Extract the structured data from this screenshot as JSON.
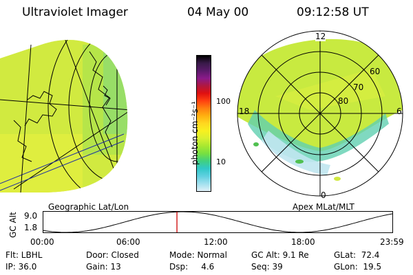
{
  "header": {
    "instrument": "Ultraviolet Imager",
    "date": "04 May 00",
    "time": "09:12:58 UT"
  },
  "left_panel": {
    "caption": "Geographic Lat/Lon"
  },
  "colorbar": {
    "unit_label": "photon cm⁻²s⁻¹",
    "ticks": [
      "100",
      "10"
    ],
    "colors": [
      "#000000",
      "#3a1a4a",
      "#5a1a6a",
      "#8a1a8a",
      "#b01840",
      "#e01010",
      "#ff4010",
      "#ff8010",
      "#ffb010",
      "#ffd820",
      "#f8f020",
      "#d8f030",
      "#a8e830",
      "#78e040",
      "#40d080",
      "#30c8c8",
      "#60d0e0",
      "#a0e0ee",
      "#e0f0f8"
    ]
  },
  "right_panel": {
    "caption": "Apex MLat/MLT",
    "mlt_labels": {
      "top": "12",
      "left": "18",
      "right": "6",
      "bottom": "0"
    },
    "mlat_labels": [
      "60",
      "70",
      "80"
    ]
  },
  "gc_alt_plot": {
    "axis_label": "GC Alt",
    "y_ticks": [
      "9.0",
      "1.8"
    ],
    "x_ticks": [
      "00:00",
      "06:00",
      "12:00",
      "18:00",
      "23:59"
    ],
    "current_time_fraction": 0.382
  },
  "info": {
    "row1": {
      "flt": "Flt: LBHL",
      "door": "Door: Closed",
      "mode": "Mode: Normal",
      "gcalt": "GC Alt: 9.1 Re",
      "glat": "GLat:  72.4"
    },
    "row2": {
      "ip": "IP: 36.0",
      "gain": "Gain: 13",
      "dsp": "Dsp:     4.6",
      "seq": "Seq: 39",
      "glon": "GLon:  19.5"
    }
  },
  "style_colors": {
    "map_fill": "#d8ee40",
    "grid_line": "#000000",
    "orbit_marker": "#cc0000"
  }
}
